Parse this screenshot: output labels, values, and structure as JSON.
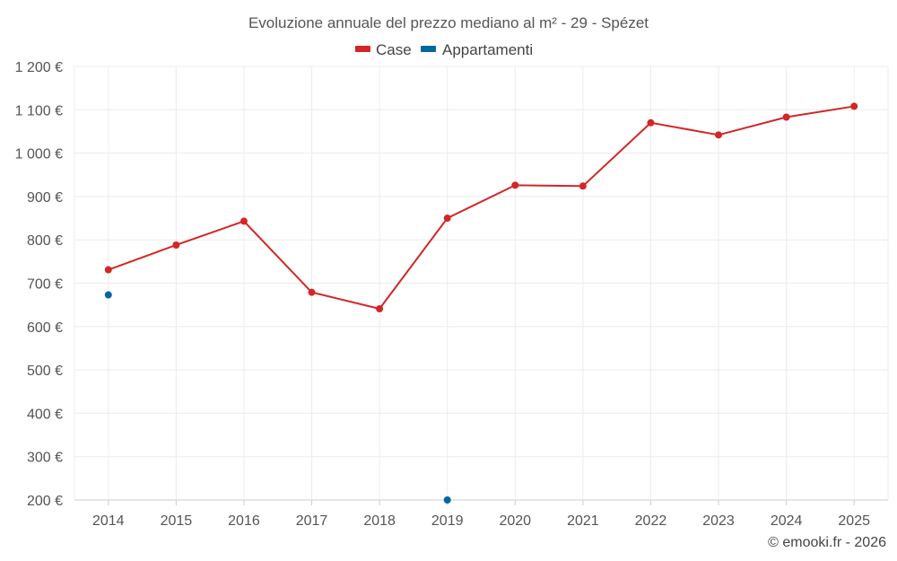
{
  "chart_data": {
    "type": "line",
    "title": "Evoluzione annuale del prezzo mediano al m² - 29 - Spézet",
    "categories": [
      "2014",
      "2015",
      "2016",
      "2017",
      "2018",
      "2019",
      "2020",
      "2021",
      "2022",
      "2023",
      "2024",
      "2025"
    ],
    "series": [
      {
        "name": "Case",
        "color": "#d32626",
        "values": [
          731,
          788,
          843,
          679,
          641,
          850,
          926,
          924,
          1070,
          1042,
          1083,
          1108
        ]
      },
      {
        "name": "Appartamenti",
        "color": "#04679c",
        "values": [
          673,
          null,
          null,
          null,
          null,
          200,
          null,
          null,
          null,
          null,
          null,
          null
        ]
      }
    ],
    "ylim": [
      200,
      1200
    ],
    "yticks": [
      200,
      300,
      400,
      500,
      600,
      700,
      800,
      900,
      1000,
      1100,
      1200
    ],
    "ytick_labels": [
      "200 €",
      "300 €",
      "400 €",
      "500 €",
      "600 €",
      "700 €",
      "800 €",
      "900 €",
      "1 000 €",
      "1 100 €",
      "1 200 €"
    ],
    "xlabel": "",
    "ylabel": "",
    "grid": true,
    "legend_position": "top-center"
  },
  "credit": "© emooki.fr - 2026"
}
